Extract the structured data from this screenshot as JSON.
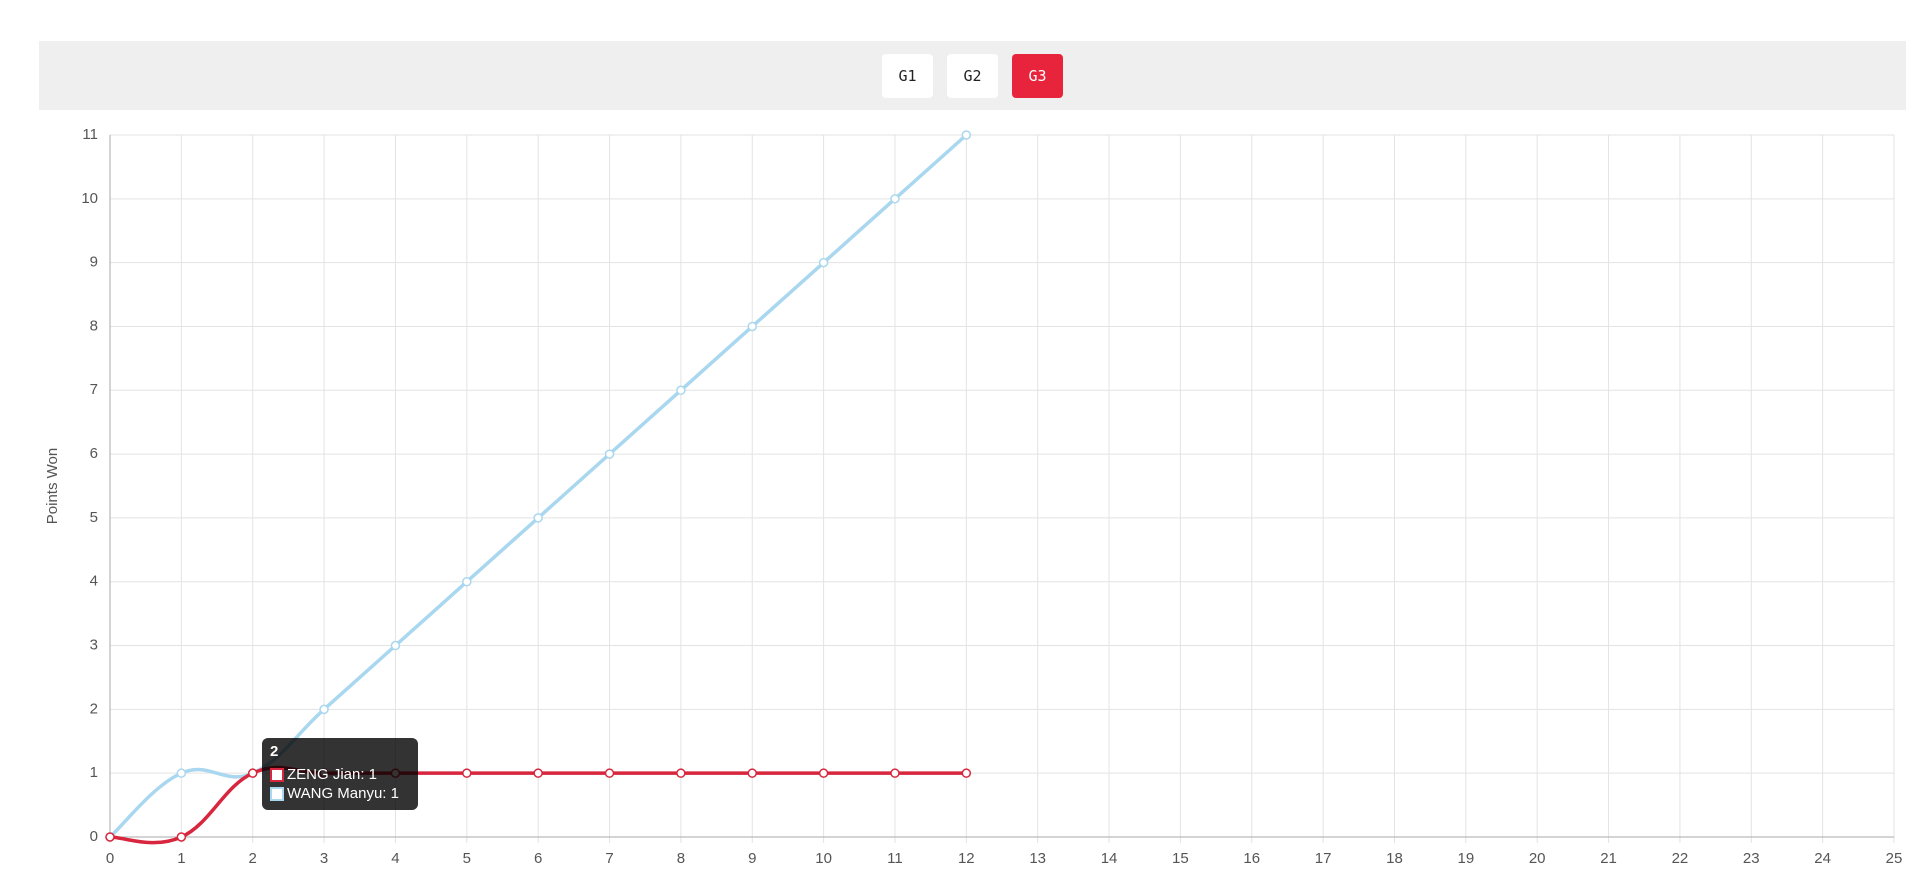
{
  "buttons": [
    "G1",
    "G2",
    "G3"
  ],
  "selected": "G3",
  "chart_data": {
    "type": "line",
    "y_label": "Points Won",
    "x": [
      0,
      1,
      2,
      3,
      4,
      5,
      6,
      7,
      8,
      9,
      10,
      11,
      12
    ],
    "series": [
      {
        "color": "#a9d7ef",
        "values": [
          0,
          1,
          1,
          2,
          3,
          4,
          5,
          6,
          7,
          8,
          9,
          10,
          11
        ]
      },
      {
        "color": "#d7263d",
        "values": [
          0,
          0,
          1,
          1,
          1,
          1,
          1,
          1,
          1,
          1,
          1,
          1,
          1
        ]
      }
    ],
    "xlim": [
      0,
      25
    ],
    "xticks": [
      0,
      1,
      2,
      3,
      4,
      5,
      6,
      7,
      8,
      9,
      10,
      11,
      12,
      13,
      14,
      15,
      16,
      17,
      18,
      19,
      20,
      21,
      22,
      23,
      24,
      25
    ],
    "ylim": [
      0,
      11
    ],
    "yticks": [
      0,
      1,
      2,
      3,
      4,
      5,
      6,
      7,
      8,
      9,
      10,
      11
    ],
    "grid": true,
    "tooltip": {
      "title": "2",
      "items": [
        "ZENG Jian: 1",
        "WANG Manyu: 1"
      ]
    }
  }
}
